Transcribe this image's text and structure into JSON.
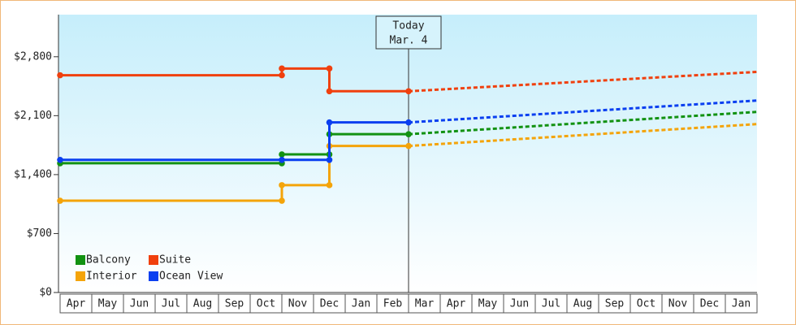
{
  "chart_data": {
    "type": "line",
    "xlim": [
      0,
      22
    ],
    "ylim": [
      0,
      3300
    ],
    "yticks": [
      {
        "value": 0,
        "label": "$0"
      },
      {
        "value": 700,
        "label": "$700"
      },
      {
        "value": 1400,
        "label": "$1,400"
      },
      {
        "value": 2100,
        "label": "$2,100"
      },
      {
        "value": 2800,
        "label": "$2,800"
      }
    ],
    "categories": [
      "Apr",
      "May",
      "Jun",
      "Jul",
      "Aug",
      "Sep",
      "Oct",
      "Nov",
      "Dec",
      "Jan",
      "Feb",
      "Mar",
      "Apr",
      "May",
      "Jun",
      "Jul",
      "Aug",
      "Sep",
      "Oct",
      "Nov",
      "Dec",
      "Jan"
    ],
    "annotation": {
      "lines": [
        "Today",
        "Mar. 4"
      ],
      "x": 11
    },
    "legend": {
      "position": "lower left",
      "columns": 2
    },
    "series": [
      {
        "name": "Balcony",
        "color": "#129212",
        "x": [
          0,
          7,
          7,
          8.5,
          8.5,
          11
        ],
        "values": [
          1535,
          1535,
          1640,
          1640,
          1880,
          1880
        ],
        "forecast": {
          "x": [
            11,
            22
          ],
          "values": [
            1880,
            2145
          ]
        }
      },
      {
        "name": "Suite",
        "color": "#f0400e",
        "x": [
          0,
          7,
          7,
          8.5,
          8.5,
          11
        ],
        "values": [
          2580,
          2580,
          2660,
          2660,
          2390,
          2390
        ],
        "forecast": {
          "x": [
            11,
            22
          ],
          "values": [
            2390,
            2620
          ]
        }
      },
      {
        "name": "Interior",
        "color": "#f4a40a",
        "x": [
          0,
          7,
          7,
          8.5,
          8.5,
          11
        ],
        "values": [
          1090,
          1090,
          1275,
          1275,
          1740,
          1740
        ],
        "forecast": {
          "x": [
            11,
            22
          ],
          "values": [
            1740,
            2000
          ]
        }
      },
      {
        "name": "Ocean View",
        "color": "#0a3ff0",
        "x": [
          0,
          7,
          8.5,
          8.5,
          11
        ],
        "values": [
          1575,
          1575,
          1575,
          2020,
          2020
        ],
        "forecast": {
          "x": [
            11,
            22
          ],
          "values": [
            2020,
            2280
          ]
        }
      }
    ]
  }
}
